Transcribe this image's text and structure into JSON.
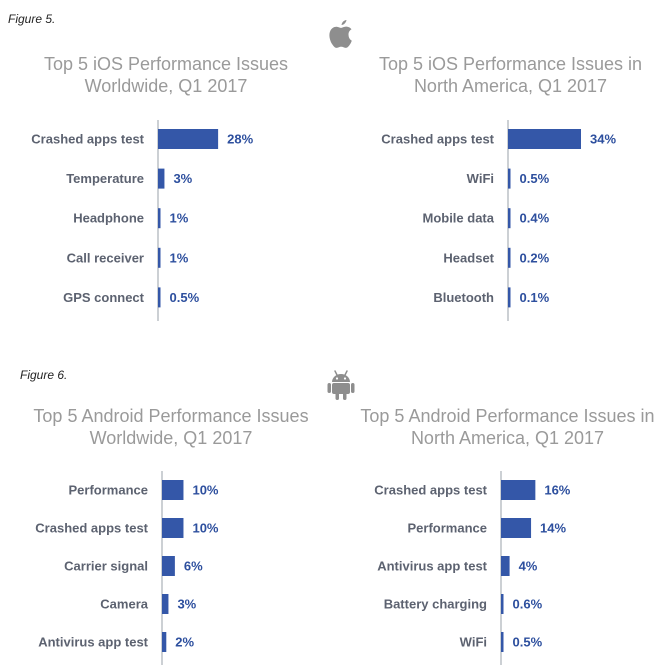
{
  "figures": [
    {
      "label": "Figure 5.",
      "platform_icon": "apple-icon"
    },
    {
      "label": "Figure 6.",
      "platform_icon": "android-icon"
    }
  ],
  "colors": {
    "bar": "#3457a8",
    "value_text": "#2d4f9e",
    "category_text": "#5c6270",
    "title": "#9a9a9a",
    "axis": "#9aa0aa"
  },
  "chart_data": [
    {
      "type": "bar",
      "orientation": "horizontal",
      "title_lines": [
        "Top 5 iOS Performance Issues",
        "Worldwide, Q1 2017"
      ],
      "categories": [
        "Crashed apps test",
        "Temperature",
        "Headphone",
        "Call receiver",
        "GPS connect"
      ],
      "values": [
        28,
        3,
        1,
        1,
        0.5
      ],
      "value_labels": [
        "28%",
        "3%",
        "1%",
        "1%",
        "0.5%"
      ],
      "xlim": [
        0,
        34
      ]
    },
    {
      "type": "bar",
      "orientation": "horizontal",
      "title_lines": [
        "Top 5 iOS Performance Issues in",
        "North America, Q1 2017"
      ],
      "categories": [
        "Crashed apps test",
        "WiFi",
        "Mobile data",
        "Headset",
        "Bluetooth"
      ],
      "values": [
        34,
        0.5,
        0.4,
        0.2,
        0.1
      ],
      "value_labels": [
        "34%",
        "0.5%",
        "0.4%",
        "0.2%",
        "0.1%"
      ],
      "xlim": [
        0,
        34
      ]
    },
    {
      "type": "bar",
      "orientation": "horizontal",
      "title_lines": [
        "Top 5 Android Performance Issues",
        "Worldwide, Q1 2017"
      ],
      "categories": [
        "Performance",
        "Crashed apps test",
        "Carrier signal",
        "Camera",
        "Antivirus app test"
      ],
      "values": [
        10,
        10,
        6,
        3,
        2
      ],
      "value_labels": [
        "10%",
        "10%",
        "6%",
        "3%",
        "2%"
      ],
      "xlim": [
        0,
        34
      ]
    },
    {
      "type": "bar",
      "orientation": "horizontal",
      "title_lines": [
        "Top 5 Android Performance Issues in",
        "North America, Q1 2017"
      ],
      "categories": [
        "Crashed apps test",
        "Performance",
        "Antivirus app test",
        "Battery charging",
        "WiFi"
      ],
      "values": [
        16,
        14,
        4,
        0.6,
        0.5
      ],
      "value_labels": [
        "16%",
        "14%",
        "4%",
        "0.6%",
        "0.5%"
      ],
      "xlim": [
        0,
        34
      ]
    }
  ]
}
